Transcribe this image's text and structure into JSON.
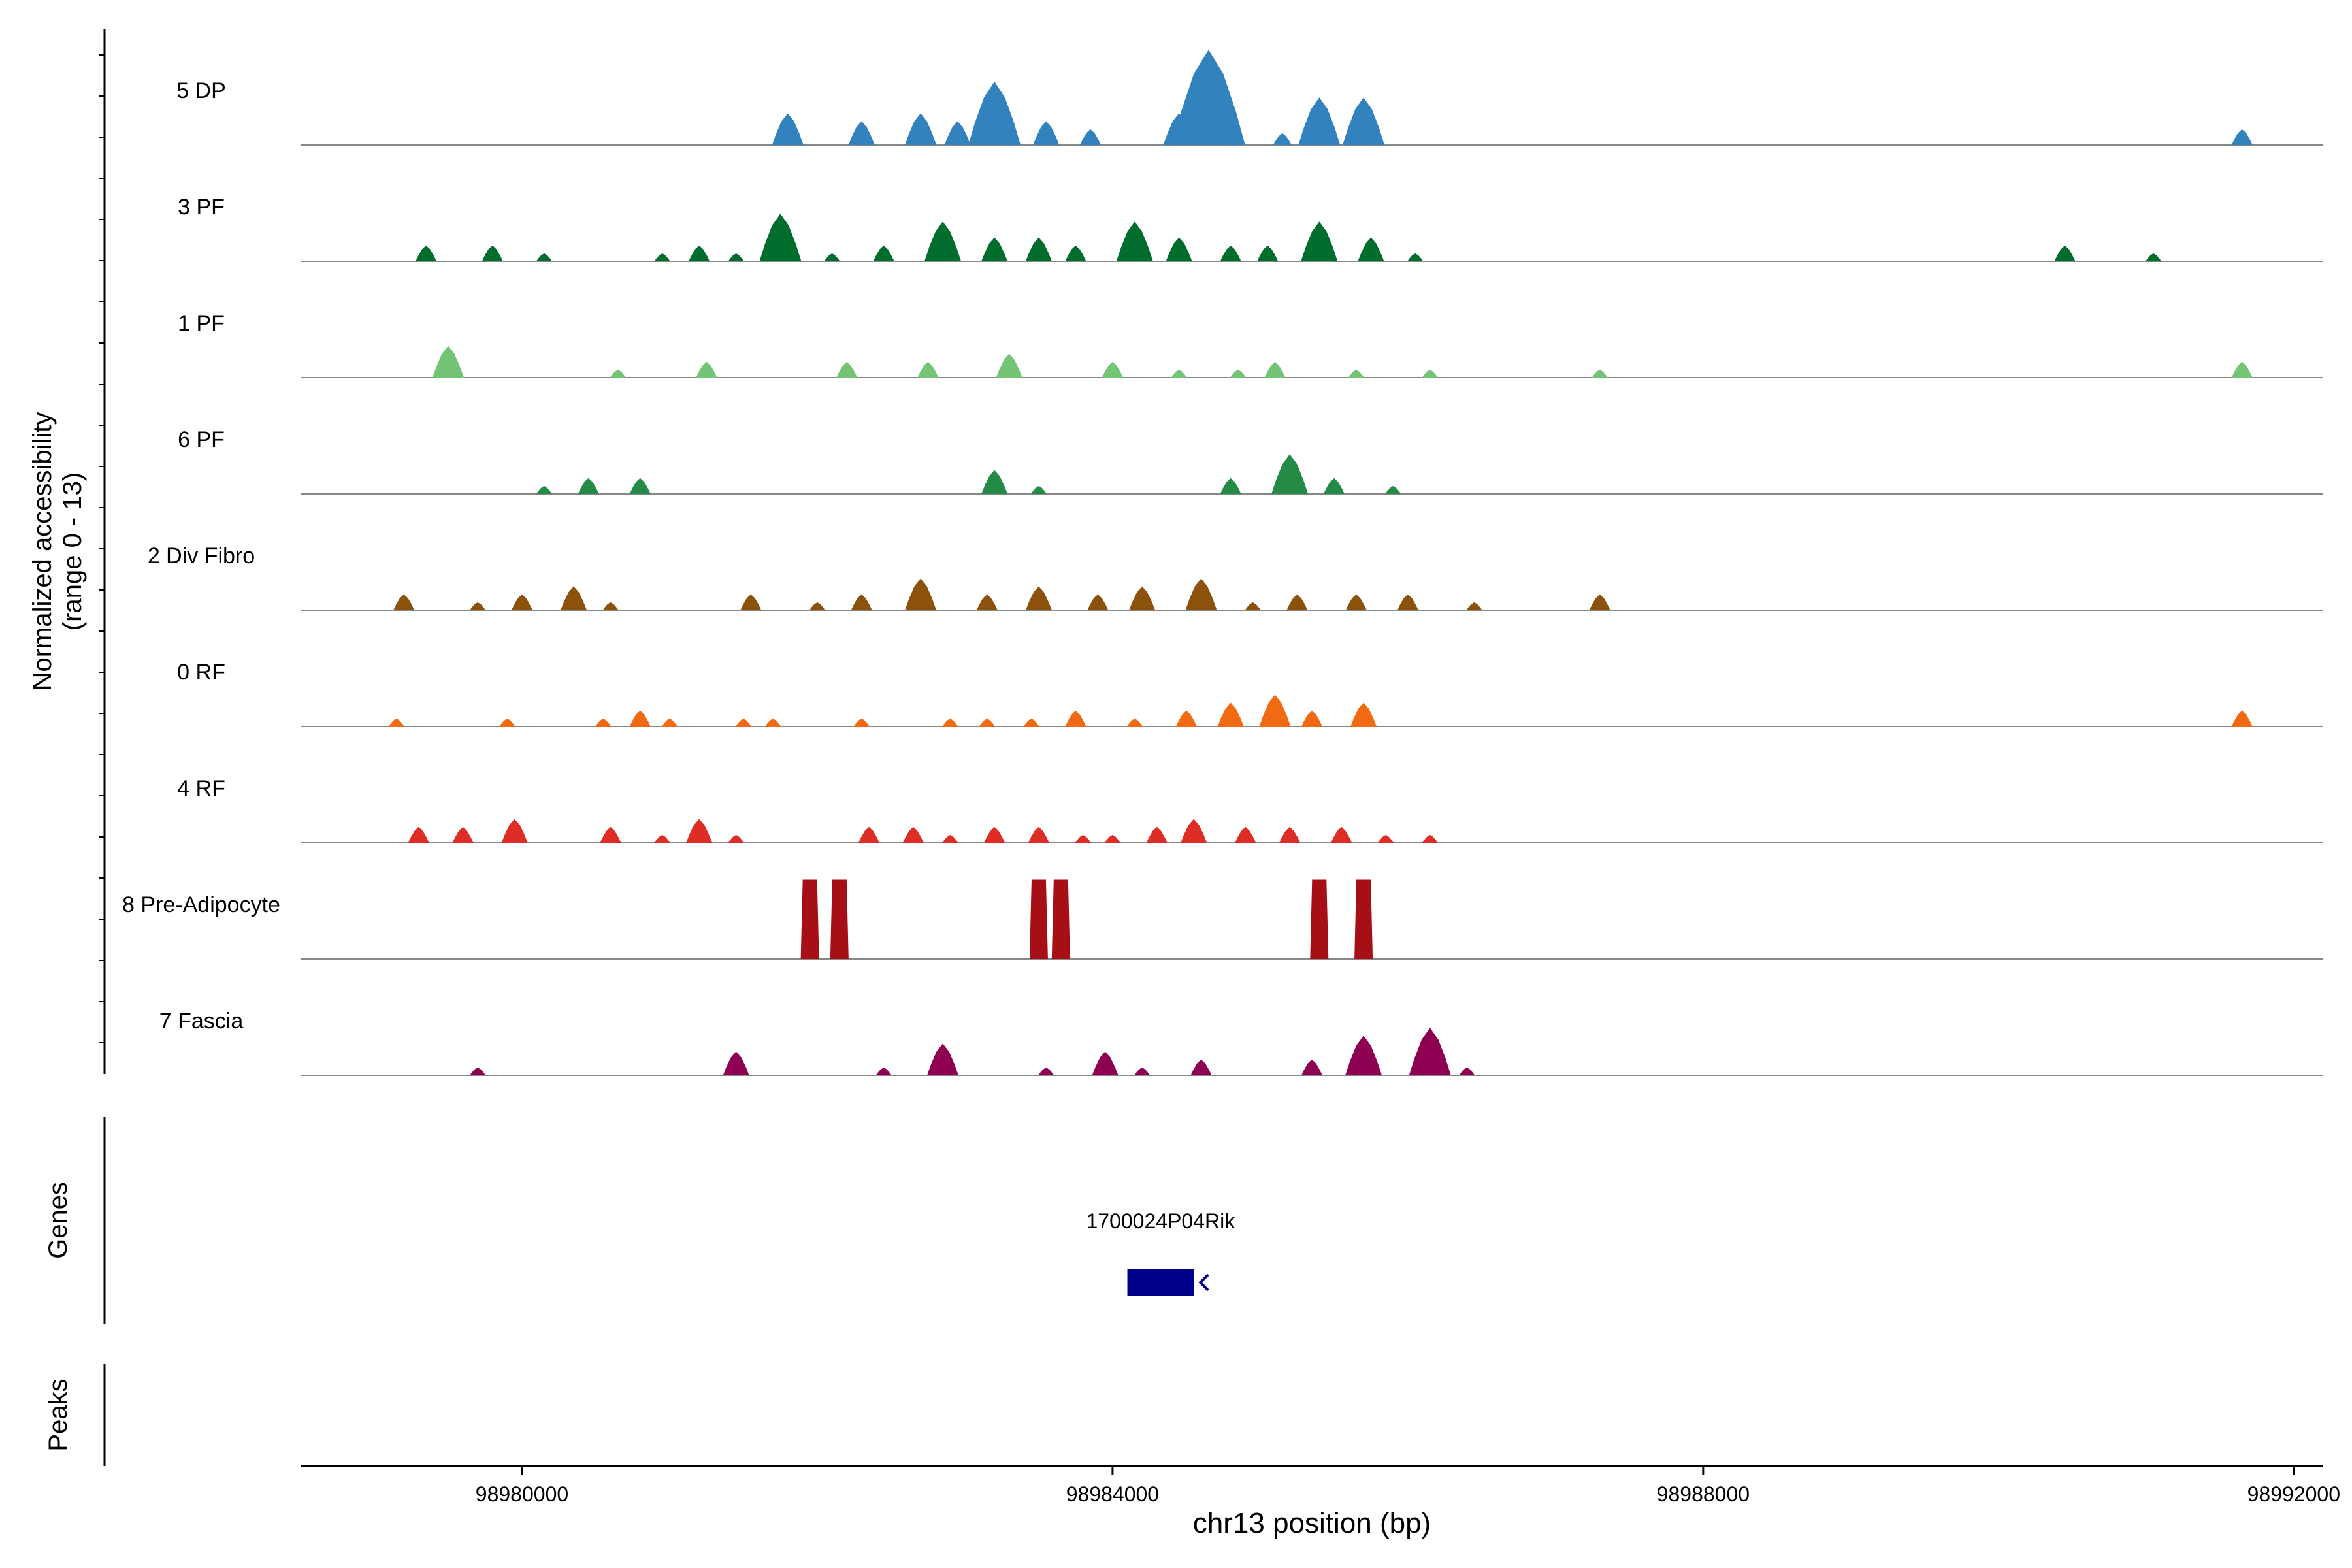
{
  "chart_data": {
    "type": "area",
    "title": "",
    "ylabel_line1": "Normalized accessibility",
    "ylabel_line2": "(range 0 - 13)",
    "xlabel": "chr13 position (bp)",
    "xlim": [
      98978500,
      98992200
    ],
    "xticks": [
      98980000,
      98984000,
      98988000,
      98992000
    ],
    "xtick_labels": [
      "98980000",
      "98984000",
      "98988000",
      "98992000"
    ],
    "ylim": [
      0,
      13
    ],
    "grid": false,
    "legend": "none",
    "tracks": [
      {
        "name": "5 DP",
        "color": "#3182bd",
        "peaks": [
          [
            98981800,
            4
          ],
          [
            98982300,
            3
          ],
          [
            98982700,
            4
          ],
          [
            98982950,
            3
          ],
          [
            98983200,
            8
          ],
          [
            98983550,
            3
          ],
          [
            98983850,
            2
          ],
          [
            98984450,
            4
          ],
          [
            98984650,
            12
          ],
          [
            98985150,
            1.5
          ],
          [
            98985400,
            6
          ],
          [
            98985700,
            6
          ],
          [
            98991650,
            2
          ]
        ]
      },
      {
        "name": "3 PF",
        "color": "#006d2c",
        "peaks": [
          [
            98979350,
            2
          ],
          [
            98979800,
            2
          ],
          [
            98980150,
            1
          ],
          [
            98980950,
            1
          ],
          [
            98981200,
            2
          ],
          [
            98981450,
            1
          ],
          [
            98981750,
            6
          ],
          [
            98982100,
            1
          ],
          [
            98982450,
            2
          ],
          [
            98982850,
            5
          ],
          [
            98983200,
            3
          ],
          [
            98983500,
            3
          ],
          [
            98983750,
            2
          ],
          [
            98984150,
            5
          ],
          [
            98984450,
            3
          ],
          [
            98984800,
            2
          ],
          [
            98985050,
            2
          ],
          [
            98985400,
            5
          ],
          [
            98985750,
            3
          ],
          [
            98986050,
            1
          ],
          [
            98990450,
            2
          ],
          [
            98991050,
            1
          ]
        ]
      },
      {
        "name": "1 PF",
        "color": "#74c476",
        "peaks": [
          [
            98979500,
            4
          ],
          [
            98980650,
            1
          ],
          [
            98981250,
            2
          ],
          [
            98982200,
            2
          ],
          [
            98982750,
            2
          ],
          [
            98983300,
            3
          ],
          [
            98984000,
            2
          ],
          [
            98984450,
            1
          ],
          [
            98984850,
            1
          ],
          [
            98985100,
            2
          ],
          [
            98985650,
            1
          ],
          [
            98986150,
            1
          ],
          [
            98987300,
            1
          ],
          [
            98991650,
            2
          ]
        ]
      },
      {
        "name": "6 PF",
        "color": "#238b45",
        "peaks": [
          [
            98980150,
            1
          ],
          [
            98980450,
            2
          ],
          [
            98980800,
            2
          ],
          [
            98983200,
            3
          ],
          [
            98983500,
            1
          ],
          [
            98984800,
            2
          ],
          [
            98985200,
            5
          ],
          [
            98985500,
            2
          ],
          [
            98985900,
            1
          ]
        ]
      },
      {
        "name": "2 Div Fibro",
        "color": "#8c510a",
        "peaks": [
          [
            98979200,
            2
          ],
          [
            98979700,
            1
          ],
          [
            98980000,
            2
          ],
          [
            98980350,
            3
          ],
          [
            98980600,
            1
          ],
          [
            98981550,
            2
          ],
          [
            98982000,
            1
          ],
          [
            98982300,
            2
          ],
          [
            98982700,
            4
          ],
          [
            98983150,
            2
          ],
          [
            98983500,
            3
          ],
          [
            98983900,
            2
          ],
          [
            98984200,
            3
          ],
          [
            98984600,
            4
          ],
          [
            98984950,
            1
          ],
          [
            98985250,
            2
          ],
          [
            98985650,
            2
          ],
          [
            98986000,
            2
          ],
          [
            98986450,
            1
          ],
          [
            98987300,
            2
          ]
        ]
      },
      {
        "name": "0 RF",
        "color": "#f16913",
        "peaks": [
          [
            98979150,
            1
          ],
          [
            98979900,
            1
          ],
          [
            98980550,
            1
          ],
          [
            98980800,
            2
          ],
          [
            98981000,
            1
          ],
          [
            98981500,
            1
          ],
          [
            98981700,
            1
          ],
          [
            98982300,
            1
          ],
          [
            98982900,
            1
          ],
          [
            98983150,
            1
          ],
          [
            98983450,
            1
          ],
          [
            98983750,
            2
          ],
          [
            98984150,
            1
          ],
          [
            98984500,
            2
          ],
          [
            98984800,
            3
          ],
          [
            98985100,
            4
          ],
          [
            98985350,
            2
          ],
          [
            98985700,
            3
          ],
          [
            98991650,
            2
          ]
        ]
      },
      {
        "name": "4 RF",
        "color": "#de2d26",
        "peaks": [
          [
            98979300,
            2
          ],
          [
            98979600,
            2
          ],
          [
            98979950,
            3
          ],
          [
            98980600,
            2
          ],
          [
            98980950,
            1
          ],
          [
            98981200,
            3
          ],
          [
            98981450,
            1
          ],
          [
            98982350,
            2
          ],
          [
            98982650,
            2
          ],
          [
            98982900,
            1
          ],
          [
            98983200,
            2
          ],
          [
            98983500,
            2
          ],
          [
            98983800,
            1
          ],
          [
            98984000,
            1
          ],
          [
            98984300,
            2
          ],
          [
            98984550,
            3
          ],
          [
            98984900,
            2
          ],
          [
            98985200,
            2
          ],
          [
            98985550,
            2
          ],
          [
            98985850,
            1
          ],
          [
            98986150,
            1
          ]
        ]
      },
      {
        "name": "8 Pre-Adipocyte",
        "color": "#a50f15",
        "peaks": [
          [
            98981950,
            10
          ],
          [
            98982150,
            10
          ],
          [
            98983500,
            10
          ],
          [
            98983650,
            10
          ],
          [
            98985400,
            10
          ],
          [
            98985700,
            10
          ]
        ]
      },
      {
        "name": "7 Fascia",
        "color": "#8e0152",
        "peaks": [
          [
            98979700,
            1
          ],
          [
            98981450,
            3
          ],
          [
            98982450,
            1
          ],
          [
            98982850,
            4
          ],
          [
            98983550,
            1
          ],
          [
            98983950,
            3
          ],
          [
            98984200,
            1
          ],
          [
            98984600,
            2
          ],
          [
            98985350,
            2
          ],
          [
            98985700,
            5
          ],
          [
            98986150,
            6
          ],
          [
            98986400,
            1
          ]
        ]
      }
    ],
    "panels": [
      "Genes",
      "Peaks"
    ],
    "genes": [
      {
        "name": "1700024P04Rik",
        "start": 98984100,
        "end": 98984550,
        "color": "#00008b"
      }
    ]
  }
}
